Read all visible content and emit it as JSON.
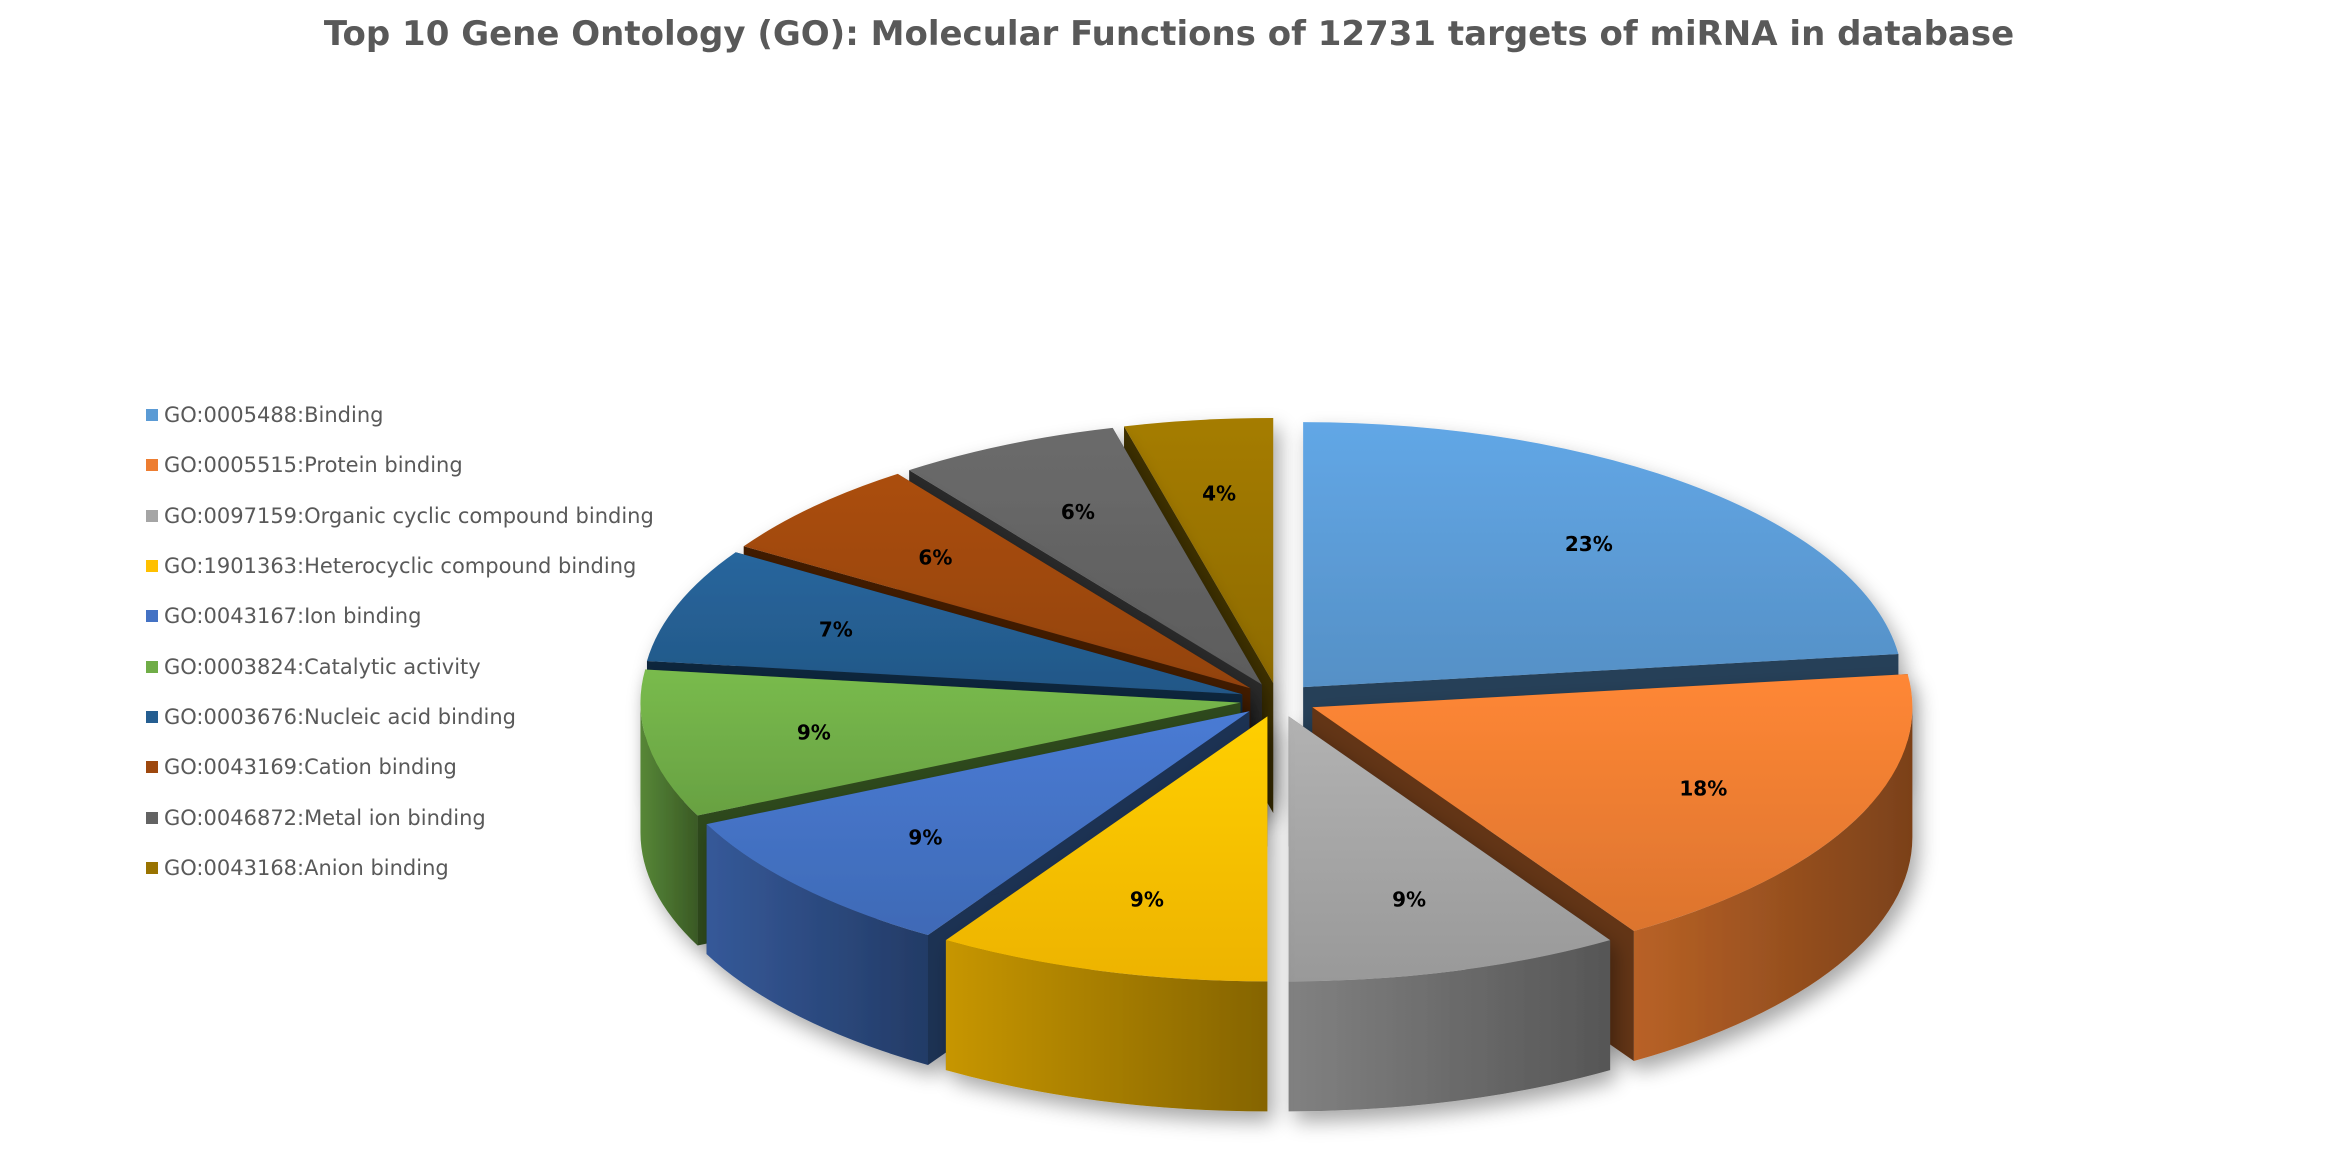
{
  "chart_data": {
    "type": "pie",
    "title": "Top 10 Gene Ontology (GO): Molecular Functions of 12731 targets of miRNA in database",
    "style": "3d-exploded",
    "legend_position": "left",
    "categories": [
      "GO:0005488:Binding",
      "GO:0005515:Protein binding",
      "GO:0097159:Organic cyclic compound binding",
      "GO:1901363:Heterocyclic compound binding",
      "GO:0043167:Ion binding",
      "GO:0003824:Catalytic activity",
      "GO:0003676:Nucleic acid binding",
      "GO:0043169:Cation binding",
      "GO:0046872:Metal ion binding",
      "GO:0043168:Anion binding"
    ],
    "values": [
      23,
      18,
      9,
      9,
      9,
      9,
      7,
      6,
      6,
      4
    ],
    "value_labels": [
      "23%",
      "18%",
      "9%",
      "9%",
      "9%",
      "9%",
      "7%",
      "6%",
      "6%",
      "4%"
    ],
    "colors": [
      "#5B9BD5",
      "#ED7D31",
      "#A5A5A5",
      "#FFC000",
      "#4472C4",
      "#70AD47",
      "#255E91",
      "#9E480E",
      "#636363",
      "#997300"
    ]
  }
}
